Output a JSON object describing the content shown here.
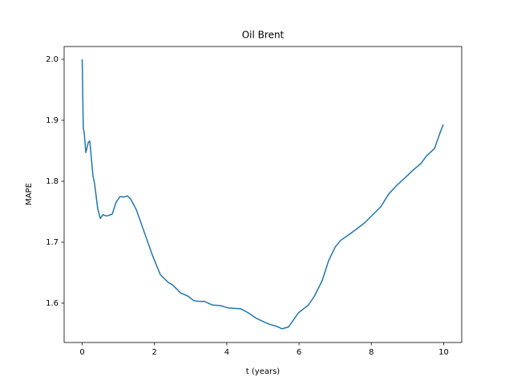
{
  "chart_data": {
    "type": "line",
    "title": "Oil Brent",
    "x_label": "t (years)",
    "y_label": "MAPE",
    "x": [
      0,
      0.03,
      0.055,
      0.1,
      0.17,
      0.21,
      0.3,
      0.34,
      0.43,
      0.5,
      0.57,
      0.68,
      0.83,
      0.94,
      1.05,
      1.16,
      1.25,
      1.34,
      1.5,
      1.72,
      1.94,
      2.16,
      2.38,
      2.5,
      2.72,
      2.94,
      3.09,
      3.27,
      3.38,
      3.6,
      3.82,
      4.05,
      4.38,
      4.6,
      4.82,
      5.15,
      5.38,
      5.53,
      5.71,
      5.98,
      6.26,
      6.42,
      6.64,
      6.82,
      7.0,
      7.15,
      7.37,
      7.6,
      7.82,
      8.04,
      8.26,
      8.48,
      8.7,
      8.92,
      9.15,
      9.37,
      9.52,
      9.75,
      9.88,
      9.99
    ],
    "series": [
      {
        "color": "#1f77b4",
        "values": [
          2.0,
          1.887,
          1.88,
          1.847,
          1.864,
          1.866,
          1.808,
          1.797,
          1.755,
          1.739,
          1.745,
          1.743,
          1.746,
          1.766,
          1.775,
          1.774,
          1.776,
          1.771,
          1.753,
          1.716,
          1.679,
          1.647,
          1.634,
          1.63,
          1.617,
          1.611,
          1.604,
          1.603,
          1.603,
          1.597,
          1.596,
          1.592,
          1.591,
          1.584,
          1.575,
          1.566,
          1.562,
          1.558,
          1.561,
          1.584,
          1.597,
          1.611,
          1.637,
          1.67,
          1.692,
          1.703,
          1.712,
          1.722,
          1.732,
          1.745,
          1.758,
          1.779,
          1.793,
          1.805,
          1.818,
          1.829,
          1.841,
          1.854,
          1.876,
          1.893
        ]
      }
    ],
    "xlim": [
      -0.5,
      10.5
    ],
    "ylim": [
      1.5355,
      2.021
    ],
    "xticks": [
      0,
      2,
      4,
      6,
      8,
      10
    ],
    "yticks": [
      1.6,
      1.7,
      1.8,
      1.9,
      {
        "value": 2,
        "label": "2.0"
      }
    ],
    "grid": false
  }
}
